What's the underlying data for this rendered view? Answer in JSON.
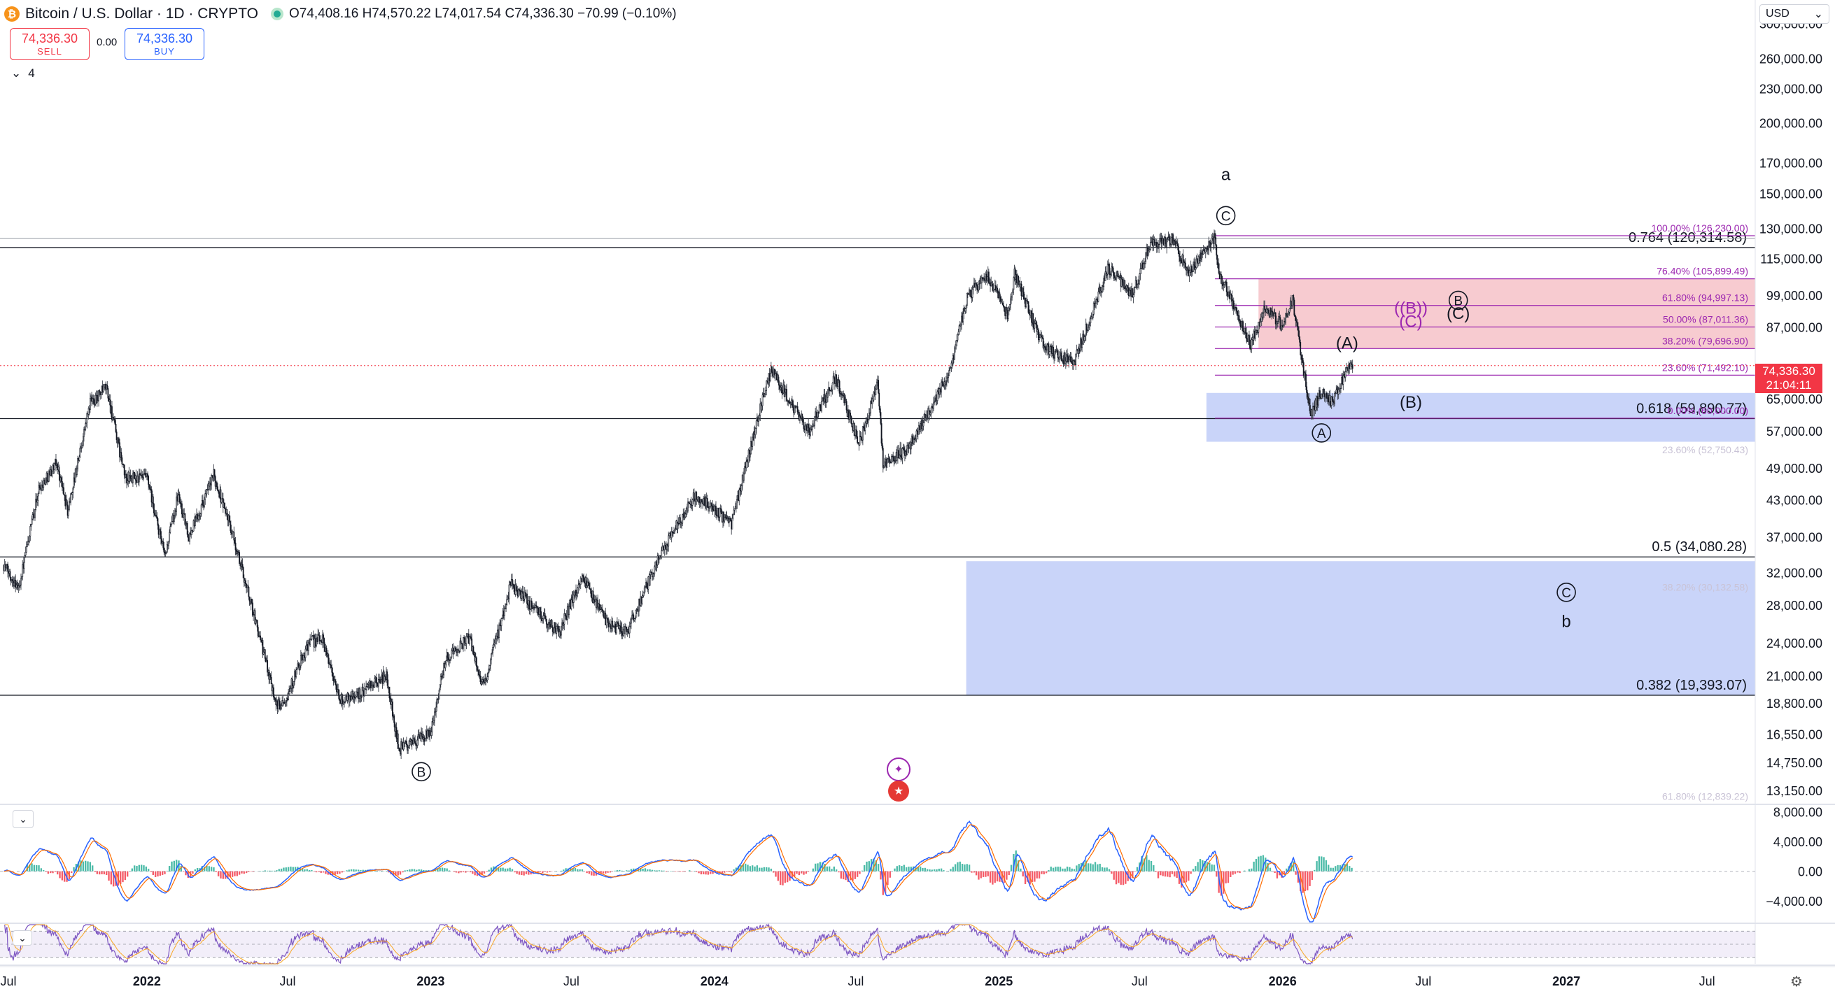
{
  "header": {
    "title": "Bitcoin / U.S. Dollar · 1D · CRYPTO",
    "ohlc": "O74,408.16 H74,570.22 L74,017.54 C74,336.30 −70.99 (−0.10%)",
    "coin_glyph": "₿"
  },
  "trade": {
    "sell_price": "74,336.30",
    "sell_label": "SELL",
    "buy_price": "74,336.30",
    "buy_label": "BUY",
    "spread": "0.00"
  },
  "legend_count": "4",
  "currency": "USD",
  "last_price": {
    "value": "74,336.30",
    "countdown": "21:04:11"
  },
  "colors": {
    "up": "#22ab94",
    "down": "#f23645",
    "fib": "#9c27b0",
    "target_zone": "#b7c6f7",
    "resistance_zone": "#f6c2c8"
  },
  "chart_data": [
    {
      "type": "candlestick",
      "scale": "log",
      "ylim": [
        12500,
        330000
      ],
      "x_axis": {
        "range": [
          "2021-07-01",
          "2027-09-01"
        ],
        "ticks": [
          {
            "date": "2021-07-01",
            "label": "Jul"
          },
          {
            "date": "2022-01-01",
            "label": "2022"
          },
          {
            "date": "2022-07-01",
            "label": "Jul"
          },
          {
            "date": "2023-01-01",
            "label": "2023"
          },
          {
            "date": "2023-07-01",
            "label": "Jul"
          },
          {
            "date": "2024-01-01",
            "label": "2024"
          },
          {
            "date": "2024-07-01",
            "label": "Jul"
          },
          {
            "date": "2025-01-01",
            "label": "2025"
          },
          {
            "date": "2025-07-01",
            "label": "Jul"
          },
          {
            "date": "2026-01-01",
            "label": "2026"
          },
          {
            "date": "2026-07-01",
            "label": "Jul"
          },
          {
            "date": "2027-01-01",
            "label": "2027"
          },
          {
            "date": "2027-07-01",
            "label": "Jul"
          }
        ]
      },
      "y_ticks": [
        {
          "value": 300000,
          "label": "300,000.00"
        },
        {
          "value": 260000,
          "label": "260,000.00"
        },
        {
          "value": 230000,
          "label": "230,000.00"
        },
        {
          "value": 200000,
          "label": "200,000.00"
        },
        {
          "value": 170000,
          "label": "170,000.00"
        },
        {
          "value": 150000,
          "label": "150,000.00"
        },
        {
          "value": 130000,
          "label": "130,000.00"
        },
        {
          "value": 115000,
          "label": "115,000.00"
        },
        {
          "value": 99000,
          "label": "99,000.00"
        },
        {
          "value": 87000,
          "label": "87,000.00"
        },
        {
          "value": 65000,
          "label": "65,000.00"
        },
        {
          "value": 57000,
          "label": "57,000.00"
        },
        {
          "value": 49000,
          "label": "49,000.00"
        },
        {
          "value": 43000,
          "label": "43,000.00"
        },
        {
          "value": 37000,
          "label": "37,000.00"
        },
        {
          "value": 32000,
          "label": "32,000.00"
        },
        {
          "value": 28000,
          "label": "28,000.00"
        },
        {
          "value": 24000,
          "label": "24,000.00"
        },
        {
          "value": 21000,
          "label": "21,000.00"
        },
        {
          "value": 18800,
          "label": "18,800.00"
        },
        {
          "value": 16550,
          "label": "16,550.00"
        },
        {
          "value": 14750,
          "label": "14,750.00"
        },
        {
          "value": 13150,
          "label": "13,150.00"
        }
      ],
      "price_path": [
        [
          "2021-07-01",
          33000
        ],
        [
          "2021-07-20",
          30000
        ],
        [
          "2021-08-15",
          45000
        ],
        [
          "2021-09-07",
          50000
        ],
        [
          "2021-09-21",
          41000
        ],
        [
          "2021-10-20",
          64000
        ],
        [
          "2021-11-10",
          68000
        ],
        [
          "2021-12-04",
          47000
        ],
        [
          "2022-01-01",
          47000
        ],
        [
          "2022-01-24",
          34000
        ],
        [
          "2022-02-10",
          44000
        ],
        [
          "2022-02-24",
          37000
        ],
        [
          "2022-03-28",
          47500
        ],
        [
          "2022-04-15",
          40000
        ],
        [
          "2022-05-10",
          30000
        ],
        [
          "2022-06-18",
          18500
        ],
        [
          "2022-07-01",
          19500
        ],
        [
          "2022-07-28",
          24000
        ],
        [
          "2022-08-15",
          24500
        ],
        [
          "2022-09-06",
          19000
        ],
        [
          "2022-10-01",
          19500
        ],
        [
          "2022-11-05",
          21000
        ],
        [
          "2022-11-21",
          15600
        ],
        [
          "2022-12-31",
          16500
        ],
        [
          "2023-01-20",
          22500
        ],
        [
          "2023-02-20",
          24500
        ],
        [
          "2023-03-10",
          20000
        ],
        [
          "2023-04-14",
          30500
        ],
        [
          "2023-06-15",
          25000
        ],
        [
          "2023-07-14",
          31500
        ],
        [
          "2023-08-17",
          26000
        ],
        [
          "2023-09-11",
          25000
        ],
        [
          "2023-10-23",
          34500
        ],
        [
          "2023-12-08",
          44000
        ],
        [
          "2024-01-23",
          39000
        ],
        [
          "2024-02-28",
          62000
        ],
        [
          "2024-03-14",
          73000
        ],
        [
          "2024-05-01",
          57000
        ],
        [
          "2024-06-05",
          71000
        ],
        [
          "2024-07-05",
          54000
        ],
        [
          "2024-07-29",
          69000
        ],
        [
          "2024-08-05",
          50000
        ],
        [
          "2024-09-06",
          53000
        ],
        [
          "2024-10-29",
          72000
        ],
        [
          "2024-11-22",
          99000
        ],
        [
          "2024-12-17",
          107000
        ],
        [
          "2025-01-13",
          91000
        ],
        [
          "2025-01-21",
          108000
        ],
        [
          "2025-02-28",
          80000
        ],
        [
          "2025-04-07",
          75000
        ],
        [
          "2025-05-22",
          111000
        ],
        [
          "2025-06-22",
          99000
        ],
        [
          "2025-07-14",
          122000
        ],
        [
          "2025-08-14",
          124000
        ],
        [
          "2025-09-01",
          108000
        ],
        [
          "2025-10-06",
          126000
        ],
        [
          "2025-10-10",
          110000
        ],
        [
          "2025-11-21",
          81000
        ],
        [
          "2025-12-10",
          94000
        ],
        [
          "2025-12-31",
          87500
        ],
        [
          "2026-01-14",
          97000
        ],
        [
          "2026-02-06",
          61000
        ],
        [
          "2026-02-20",
          67000
        ],
        [
          "2026-03-05",
          64000
        ],
        [
          "2026-03-22",
          72000
        ],
        [
          "2026-04-01",
          74336
        ]
      ],
      "levels": [
        {
          "value": 120314.58,
          "label": "0.764 (120,314.58)",
          "color": "#131722",
          "from": "2021-07-01"
        },
        {
          "value": 34080.28,
          "label": "0.5 (34,080.28)",
          "color": "#131722",
          "from": "2021-07-01"
        },
        {
          "value": 19393.07,
          "label": "0.382 (19,393.07)",
          "color": "#131722",
          "from": "2021-07-01"
        },
        {
          "value": 59890.77,
          "label": "0.618 (59,890.77)",
          "color": "#131722",
          "from": "2021-07-01"
        }
      ],
      "fib_levels": [
        {
          "value": 126230.0,
          "label": "100.00% (126,230.00)"
        },
        {
          "value": 105899.49,
          "label": "76.40% (105,899.49)"
        },
        {
          "value": 94997.13,
          "label": "61.80% (94,997.13)"
        },
        {
          "value": 87011.36,
          "label": "50.00% (87,011.36)"
        },
        {
          "value": 79696.9,
          "label": "38.20% (79,696.90)"
        },
        {
          "value": 71492.1,
          "label": "23.60% (71,492.10)"
        },
        {
          "value": 60000,
          "label": "0.00% (60,000.00)"
        }
      ],
      "faded_labels": [
        {
          "value": 52750.43,
          "label": "23.60% (52,750.43)"
        },
        {
          "value": 30132.58,
          "label": "38.20% (30,132.58)"
        },
        {
          "value": 12839.22,
          "label": "61.80% (12,839.22)"
        }
      ],
      "zones": [
        {
          "from": "2025-12-01",
          "to": "2027-09-01",
          "top": 105899.49,
          "bottom": 79696.9,
          "kind": "resistance"
        },
        {
          "from": "2025-09-25",
          "to": "2027-09-01",
          "top": 66500,
          "bottom": 54500,
          "kind": "target"
        },
        {
          "from": "2024-11-20",
          "to": "2027-09-01",
          "top": 33500,
          "bottom": 19393.07,
          "kind": "target"
        }
      ],
      "wave_labels": [
        {
          "text": "a",
          "date": "2025-10-20",
          "value": 162000,
          "circled": false,
          "color": "#131722"
        },
        {
          "text": "C",
          "date": "2025-10-20",
          "value": 137000,
          "circled": true,
          "color": "#131722"
        },
        {
          "text": "B",
          "date": "2022-12-20",
          "value": 14200,
          "circled": true,
          "color": "#131722"
        },
        {
          "text": "A",
          "date": "2026-02-20",
          "value": 56500,
          "circled": true,
          "color": "#131722"
        },
        {
          "text": "(A)",
          "date": "2026-03-25",
          "value": 81500,
          "circled": false,
          "color": "#131722"
        },
        {
          "text": "(B)",
          "date": "2026-06-15",
          "value": 64000,
          "circled": false,
          "color": "#131722"
        },
        {
          "text": "((B))",
          "date": "2026-06-15",
          "value": 94000,
          "circled": false,
          "color": "#9c27b0"
        },
        {
          "text": "(C)",
          "date": "2026-06-15",
          "value": 89000,
          "circled": false,
          "color": "#9c27b0"
        },
        {
          "text": "B",
          "date": "2026-08-15",
          "value": 97000,
          "circled": true,
          "color": "#131722"
        },
        {
          "text": "(C)",
          "date": "2026-08-15",
          "value": 92000,
          "circled": false,
          "color": "#131722"
        },
        {
          "text": "C",
          "date": "2027-01-01",
          "value": 29500,
          "circled": true,
          "color": "#131722"
        },
        {
          "text": "b",
          "date": "2027-01-01",
          "value": 26200,
          "circled": false,
          "color": "#131722"
        }
      ]
    },
    {
      "type": "line",
      "name": "oscillator",
      "ylim": [
        -6800,
        9000
      ],
      "y_ticks": [
        {
          "value": 8000,
          "label": "8,000.00"
        },
        {
          "value": 4000,
          "label": "4,000.00"
        },
        {
          "value": 0,
          "label": "0.00"
        },
        {
          "value": -4000,
          "label": "−4,000.00"
        }
      ]
    },
    {
      "type": "line",
      "name": "rsi",
      "ylim": [
        20,
        80
      ]
    }
  ]
}
